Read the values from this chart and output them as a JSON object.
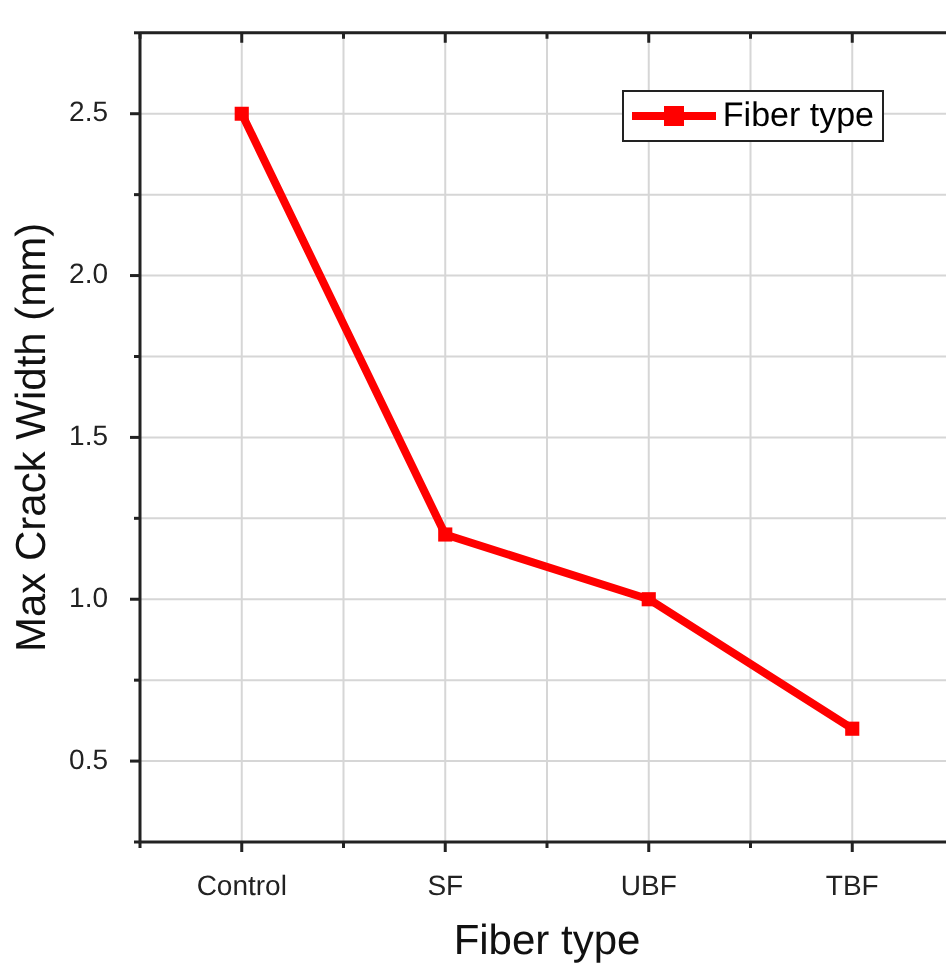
{
  "chart_data": {
    "type": "line",
    "xlabel": "Fiber type",
    "ylabel": "Max Crack Width (mm)",
    "categories": [
      "Control",
      "SF",
      "UBF",
      "TBF"
    ],
    "series": [
      {
        "name": "Fiber type",
        "color": "#ff0000",
        "values": [
          2.5,
          1.2,
          1.0,
          0.6
        ]
      }
    ],
    "ylim": [
      0.25,
      2.75
    ],
    "yticks": [
      {
        "value": 0.25,
        "label": null
      },
      0.5,
      {
        "value": 0.75,
        "label": null
      },
      {
        "value": 1,
        "label": "1.0"
      },
      {
        "value": 1.25,
        "label": null
      },
      1.5,
      {
        "value": 1.75,
        "label": null
      },
      {
        "value": 2,
        "label": "2.0"
      },
      {
        "value": 2.25,
        "label": null
      },
      2.5,
      {
        "value": 2.75,
        "label": null
      }
    ],
    "grid": true,
    "legend": "top right",
    "marker": "square",
    "line_style": "solid"
  }
}
